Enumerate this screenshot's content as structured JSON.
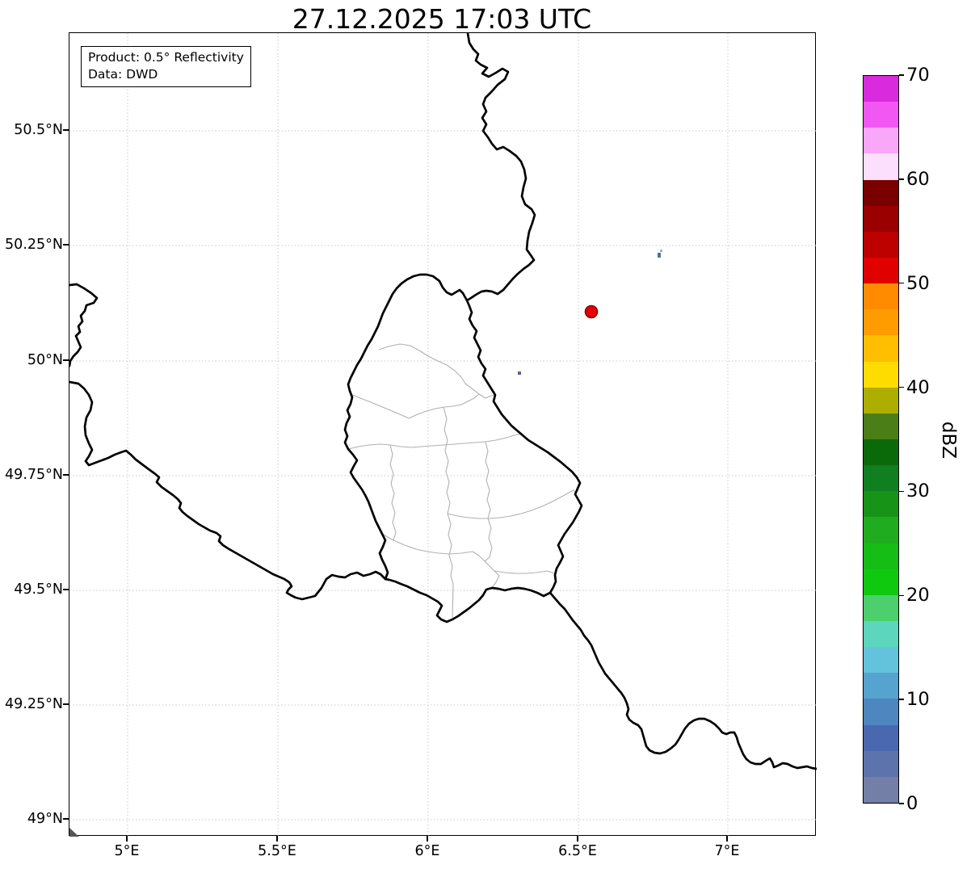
{
  "title": "27.12.2025 17:03 UTC",
  "info_box": {
    "product": "Product: 0.5° Reflectivity",
    "data_source": "Data: DWD"
  },
  "axes": {
    "x_tick_labels": [
      "5°E",
      "5.5°E",
      "6°E",
      "6.5°E",
      "7°E"
    ],
    "y_tick_labels": [
      "50.5°N",
      "50.25°N",
      "50°N",
      "49.75°N",
      "49.5°N",
      "49.25°N",
      "49°N"
    ]
  },
  "colorbar": {
    "label": "dBZ",
    "range": {
      "min": 0,
      "max": 70
    },
    "tick_values": [
      0,
      10,
      20,
      30,
      40,
      50,
      60,
      70
    ],
    "segment_step_dbz": 2.5,
    "segment_colors_bottom_to_top": [
      "#737fa6",
      "#5d73ac",
      "#4a68b0",
      "#4e86c0",
      "#57a3d0",
      "#63c3dd",
      "#5cd6bc",
      "#4ccf6c",
      "#0ec90e",
      "#15bd15",
      "#1fad1f",
      "#179317",
      "#0f7f20",
      "#0a6a0a",
      "#4b7e17",
      "#aeae00",
      "#ffdc00",
      "#ffbf00",
      "#ff9c00",
      "#ff8b00",
      "#e10000",
      "#bd0000",
      "#9b0000",
      "#7a0000",
      "#fcdffc",
      "#f9a7f9",
      "#f357f3",
      "#d92ade"
    ]
  },
  "map": {
    "country_border_color": "#000000",
    "district_border_color": "#b0b0b0",
    "grid_color": "#c9c9c9",
    "radar_site_marker": {
      "fill": "#e60000",
      "edge": "#8b0000",
      "lon_approx": "6.55°E",
      "lat_approx": "50.11°N"
    },
    "echoes": [
      {
        "color": "#5a6c99",
        "dbz_bin": "0-5"
      },
      {
        "color": "#8fb7d9",
        "dbz_bin": "10-15"
      },
      {
        "color": "#5a6292",
        "dbz_bin": "0-5"
      }
    ]
  }
}
